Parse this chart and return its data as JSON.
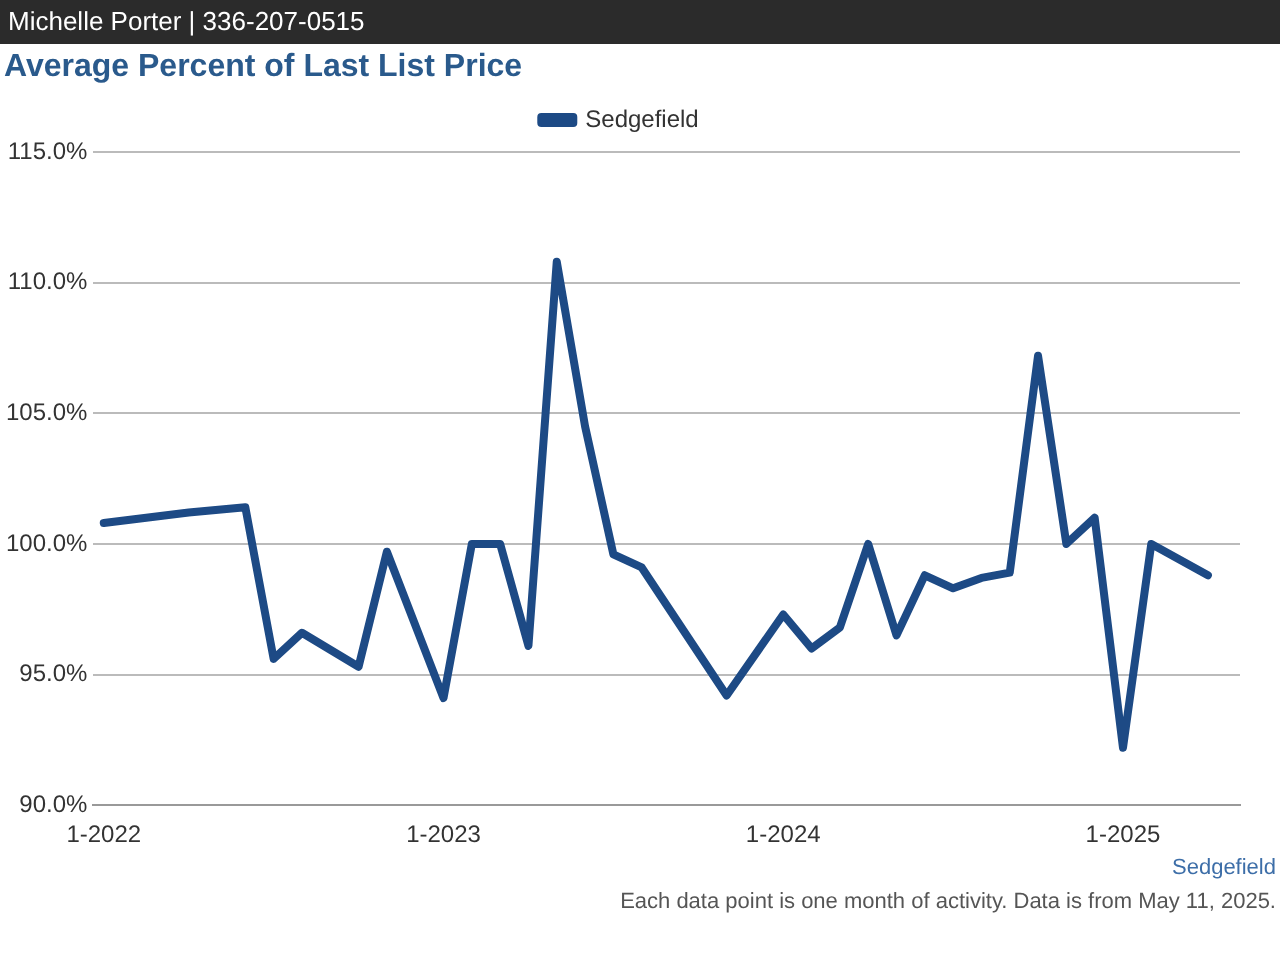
{
  "chart_data": {
    "type": "line",
    "title": "Average Percent of Last List Price",
    "x": [
      "2022-01",
      "2022-04",
      "2022-06",
      "2022-07",
      "2022-08",
      "2022-10",
      "2022-11",
      "2023-01",
      "2023-02",
      "2023-03",
      "2023-04",
      "2023-05",
      "2023-06",
      "2023-07",
      "2023-08",
      "2023-11",
      "2024-01",
      "2024-02",
      "2024-03",
      "2024-04",
      "2024-05",
      "2024-06",
      "2024-07",
      "2024-08",
      "2024-09",
      "2024-10",
      "2024-11",
      "2024-12",
      "2025-01",
      "2025-02",
      "2025-04"
    ],
    "series": [
      {
        "name": "Sedgefield",
        "color": "#1d4a85",
        "values": [
          100.8,
          101.2,
          101.4,
          95.6,
          96.6,
          95.3,
          99.7,
          94.1,
          100.0,
          100.0,
          96.1,
          110.8,
          104.5,
          99.6,
          99.1,
          94.2,
          97.3,
          96.0,
          96.8,
          100.0,
          96.5,
          98.8,
          98.3,
          98.7,
          98.9,
          107.2,
          100.0,
          101.0,
          92.2,
          100.0,
          98.8
        ]
      }
    ],
    "xlim": [
      "2021-12-20",
      "2025-05-05"
    ],
    "xticks": [
      {
        "value": "2022-01",
        "label": "1-2022"
      },
      {
        "value": "2023-01",
        "label": "1-2023"
      },
      {
        "value": "2024-01",
        "label": "1-2024"
      },
      {
        "value": "2025-01",
        "label": "1-2025"
      }
    ],
    "ylim": [
      90,
      115
    ],
    "yticks": [
      {
        "value": 90,
        "label": "90.0%"
      },
      {
        "value": 95,
        "label": "95.0%"
      },
      {
        "value": 100,
        "label": "100.0%"
      },
      {
        "value": 105,
        "label": "105.0%"
      },
      {
        "value": 110,
        "label": "110.0%"
      },
      {
        "value": 115,
        "label": "115.0%"
      }
    ],
    "grid": "y",
    "legend": "top",
    "marker": "none",
    "line_style": "solid",
    "annotations": [
      "Michelle Porter | 336-207-0515",
      "Sedgefield",
      "Each data point is one month of activity. Data is from May 11, 2025."
    ]
  }
}
